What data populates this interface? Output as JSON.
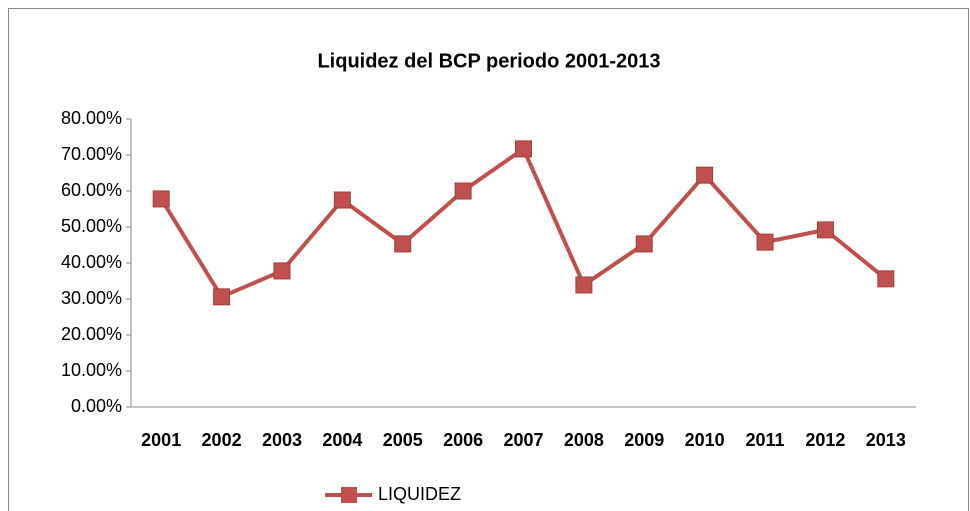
{
  "chart_data": {
    "type": "line",
    "title": "Liquidez del BCP periodo 2001-2013",
    "categories": [
      "2001",
      "2002",
      "2003",
      "2004",
      "2005",
      "2006",
      "2007",
      "2008",
      "2009",
      "2010",
      "2011",
      "2012",
      "2013"
    ],
    "series": [
      {
        "name": "LIQUIDEZ",
        "color": "#c0504d",
        "values": [
          57.8,
          30.6,
          37.8,
          57.5,
          45.3,
          60,
          71.7,
          33.9,
          45.3,
          64.4,
          45.8,
          49.2,
          35.6
        ]
      }
    ],
    "ylim": [
      0,
      80
    ],
    "yticks": [
      {
        "value": 0,
        "label": "0.00%"
      },
      {
        "value": 10,
        "label": "10.00%"
      },
      {
        "value": 20,
        "label": "20.00%"
      },
      {
        "value": 30,
        "label": "30.00%"
      },
      {
        "value": 40,
        "label": "40.00%"
      },
      {
        "value": 50,
        "label": "50.00%"
      },
      {
        "value": 60,
        "label": "60.00%"
      },
      {
        "value": 70,
        "label": "70.00%"
      },
      {
        "value": 80,
        "label": "80.00%"
      }
    ],
    "grid": false,
    "legend": "bottom"
  }
}
